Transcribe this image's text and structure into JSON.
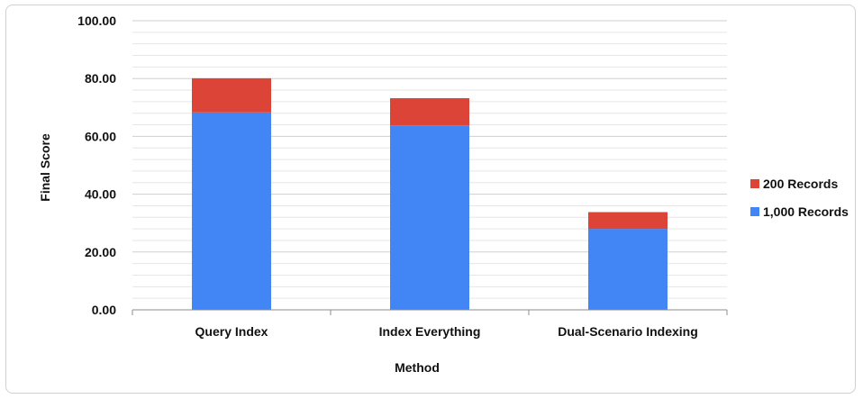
{
  "chart_data": {
    "type": "bar",
    "stacked": true,
    "title": "",
    "xlabel": "Method",
    "ylabel": "Final Score",
    "ylim": [
      0,
      100
    ],
    "y_ticks": [
      "0.00",
      "20.00",
      "40.00",
      "60.00",
      "80.00",
      "100.00"
    ],
    "minor_grid_step": 4,
    "grid": true,
    "legend_position": "right",
    "categories": [
      "Query Index",
      "Index Everything",
      "Dual-Scenario Indexing"
    ],
    "series": [
      {
        "name": "1,000 Records",
        "color": "#4285f4",
        "values": [
          68.3,
          63.8,
          28.0
        ]
      },
      {
        "name": "200 Records",
        "color": "#db4437",
        "values": [
          11.8,
          9.4,
          5.8
        ]
      }
    ],
    "legend_order": [
      1,
      0
    ]
  }
}
